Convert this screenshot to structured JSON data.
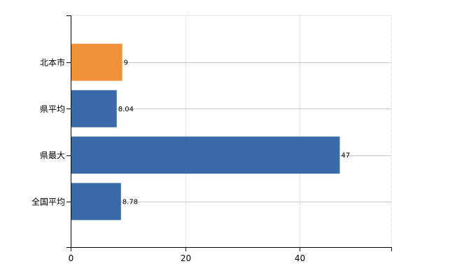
{
  "chart_data": {
    "type": "bar",
    "orientation": "horizontal",
    "categories": [
      "北本市",
      "県平均",
      "県最大",
      "全国平均"
    ],
    "values": [
      9,
      8.04,
      47,
      8.78
    ],
    "value_labels": [
      "9",
      "8.04",
      "47",
      "8.78"
    ],
    "colors": [
      "#f0913a",
      "#3a6ba8",
      "#3a6ba8",
      "#3a6ba8"
    ],
    "xlim": [
      0,
      56
    ],
    "x_ticks": [
      0,
      20,
      40
    ],
    "x_tick_labels": [
      "0",
      "20",
      "40"
    ],
    "title": "",
    "xlabel": "",
    "ylabel": "",
    "grid": true,
    "legend": false
  }
}
